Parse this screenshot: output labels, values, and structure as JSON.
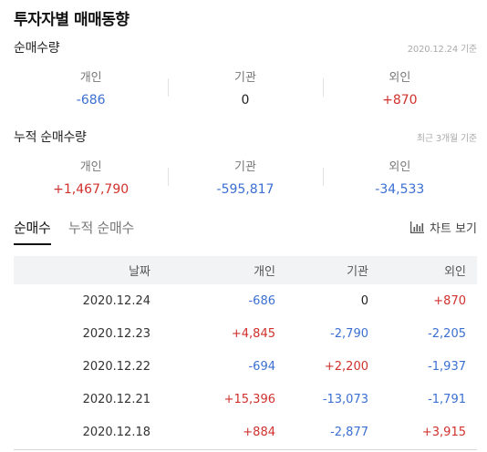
{
  "page": {
    "title": "투자자별 매매동향"
  },
  "net": {
    "title": "순매수량",
    "note": "2020.12.24 기준",
    "items": [
      {
        "label": "개인",
        "value": "-686",
        "sign": "neg"
      },
      {
        "label": "기관",
        "value": "0",
        "sign": "zero"
      },
      {
        "label": "외인",
        "value": "+870",
        "sign": "pos"
      }
    ]
  },
  "cumulative": {
    "title": "누적 순매수량",
    "note": "최근 3개월 기준",
    "items": [
      {
        "label": "개인",
        "value": "+1,467,790",
        "sign": "pos"
      },
      {
        "label": "기관",
        "value": "-595,817",
        "sign": "neg"
      },
      {
        "label": "외인",
        "value": "-34,533",
        "sign": "neg"
      }
    ]
  },
  "tabs": [
    {
      "label": "순매수",
      "active": true
    },
    {
      "label": "누적 순매수",
      "active": false
    }
  ],
  "chart_button": {
    "label": "차트 보기",
    "icon": "bar-chart-icon"
  },
  "table": {
    "headers": [
      "날짜",
      "개인",
      "기관",
      "외인"
    ],
    "rows": [
      {
        "date": "2020.12.24",
        "individual": "-686",
        "institution": "0",
        "foreign": "+870"
      },
      {
        "date": "2020.12.23",
        "individual": "+4,845",
        "institution": "-2,790",
        "foreign": "-2,205"
      },
      {
        "date": "2020.12.22",
        "individual": "-694",
        "institution": "+2,200",
        "foreign": "-1,937"
      },
      {
        "date": "2020.12.21",
        "individual": "+15,396",
        "institution": "-13,073",
        "foreign": "-1,791"
      },
      {
        "date": "2020.12.18",
        "individual": "+884",
        "institution": "-2,877",
        "foreign": "+3,915"
      }
    ]
  },
  "colors": {
    "positive": "#d0312d",
    "negative": "#3b6fd1",
    "neutral": "#222222"
  }
}
